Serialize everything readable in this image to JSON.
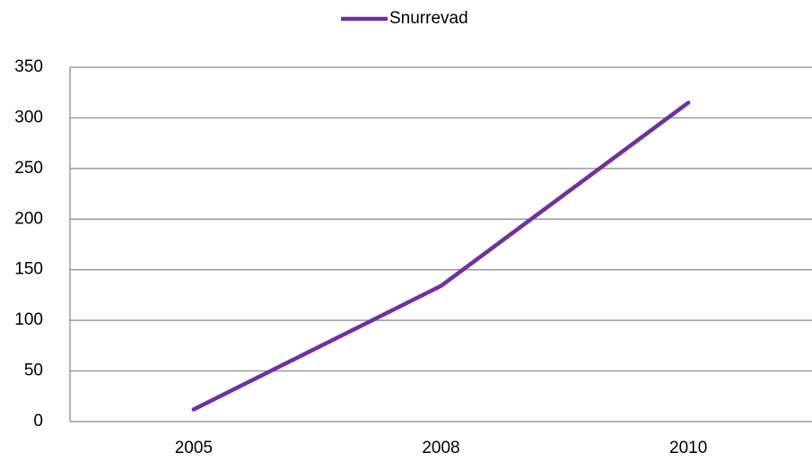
{
  "chart_data": {
    "type": "line",
    "categories": [
      "2005",
      "2008",
      "2010"
    ],
    "series": [
      {
        "name": "Snurrevad",
        "color": "#7030a0",
        "values": [
          12,
          134,
          315
        ]
      }
    ],
    "ylim": [
      0,
      350
    ],
    "yticks": [
      0,
      50,
      100,
      150,
      200,
      250,
      300,
      350
    ],
    "grid": true,
    "legend": "top"
  }
}
